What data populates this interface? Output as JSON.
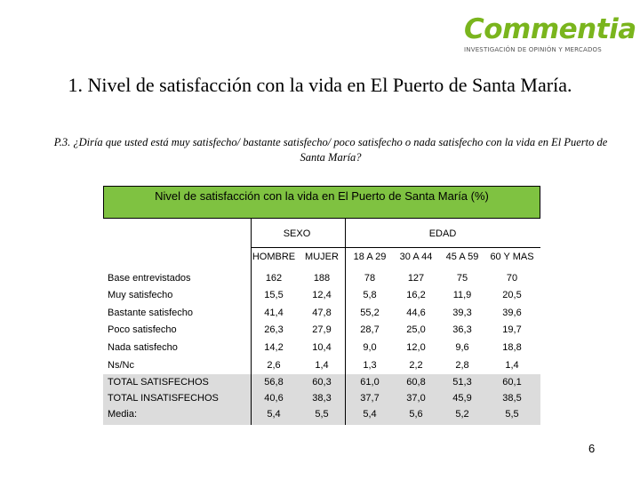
{
  "logo": {
    "name": "Commentia",
    "tagline": "INVESTIGACIÓN DE OPINIÓN Y MERCADOS"
  },
  "title": "1. Nivel de satisfacción con la vida en El Puerto de Santa María.",
  "question": "P.3. ¿Diría que usted está muy satisfecho/ bastante satisfecho/ poco satisfecho o nada satisfecho con la vida en El Puerto de Santa María?",
  "table": {
    "header": "Nivel de satisfacción con la vida en El Puerto de Santa María (%)",
    "groups": [
      "SEXO",
      "EDAD"
    ],
    "columns": [
      "HOMBRE",
      "MUJER",
      "18 A 29",
      "30 A 44",
      "45 A 59",
      "60 Y MAS"
    ],
    "rows": [
      {
        "label": "Base entrevistados",
        "values": [
          "162",
          "188",
          "78",
          "127",
          "75",
          "70"
        ]
      },
      {
        "label": "Muy satisfecho",
        "values": [
          "15,5",
          "12,4",
          "5,8",
          "16,2",
          "11,9",
          "20,5"
        ]
      },
      {
        "label": "Bastante satisfecho",
        "values": [
          "41,4",
          "47,8",
          "55,2",
          "44,6",
          "39,3",
          "39,6"
        ]
      },
      {
        "label": "Poco satisfecho",
        "values": [
          "26,3",
          "27,9",
          "28,7",
          "25,0",
          "36,3",
          "19,7"
        ]
      },
      {
        "label": "Nada satisfecho",
        "values": [
          "14,2",
          "10,4",
          "9,0",
          "12,0",
          "9,6",
          "18,8"
        ]
      },
      {
        "label": "Ns/Nc",
        "values": [
          "2,6",
          "1,4",
          "1,3",
          "2,2",
          "2,8",
          "1,4"
        ]
      },
      {
        "label": "TOTAL SATISFECHOS",
        "values": [
          "56,8",
          "60,3",
          "61,0",
          "60,8",
          "51,3",
          "60,1"
        ]
      },
      {
        "label": "TOTAL INSATISFECHOS",
        "values": [
          "40,6",
          "38,3",
          "37,7",
          "37,0",
          "45,9",
          "38,5"
        ]
      },
      {
        "label": "Media:",
        "values": [
          "5,4",
          "5,5",
          "5,4",
          "5,6",
          "5,2",
          "5,5"
        ]
      }
    ]
  },
  "page_number": "6",
  "colors": {
    "brand_green": "#7ab51d",
    "header_green": "#7fc241",
    "summary_gray": "#dcdcdc"
  }
}
